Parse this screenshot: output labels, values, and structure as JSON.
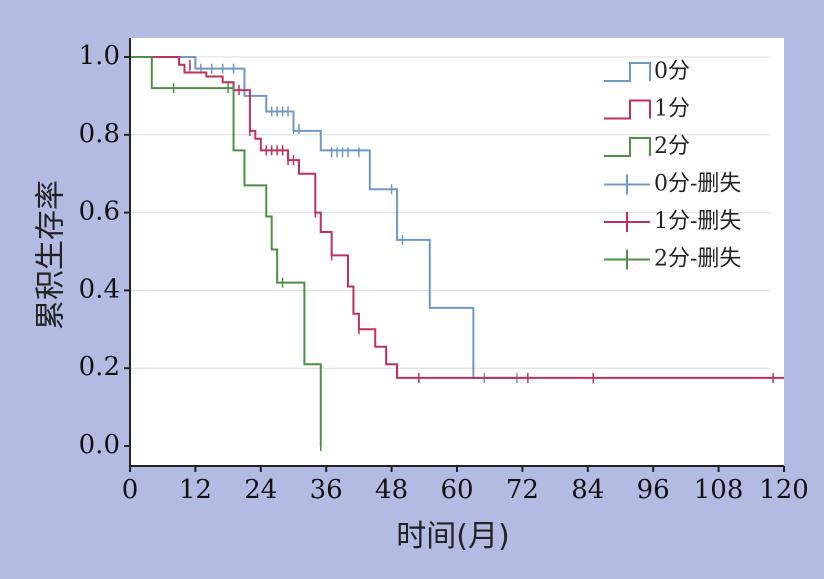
{
  "chart_data": {
    "type": "line",
    "subtype": "kaplan-meier step",
    "xlabel": "时间(月)",
    "ylabel": "累积生存率",
    "xlim": [
      0,
      120
    ],
    "ylim": [
      0,
      1.0
    ],
    "xticks": [
      "0",
      "12",
      "24",
      "36",
      "48",
      "60",
      "72",
      "84",
      "96",
      "108",
      "120"
    ],
    "yticks": [
      "0.0",
      "0.2",
      "0.4",
      "0.6",
      "0.8",
      "1.0"
    ],
    "grid": "horizontal",
    "legend_position": "top-right",
    "legend": [
      "0分",
      "1分",
      "2分",
      "0分-删失",
      "1分-删失",
      "2分-删失"
    ],
    "series": [
      {
        "name": "0分",
        "color": "#6f98c7",
        "steps": [
          [
            0,
            1.0
          ],
          [
            12,
            0.97
          ],
          [
            21,
            0.9
          ],
          [
            25,
            0.86
          ],
          [
            30,
            0.81
          ],
          [
            35,
            0.76
          ],
          [
            44,
            0.66
          ],
          [
            49,
            0.53
          ],
          [
            55,
            0.355
          ],
          [
            63,
            0.175
          ],
          [
            72,
            0.175
          ]
        ],
        "censored": [
          [
            11,
            0.97
          ],
          [
            13,
            0.97
          ],
          [
            15,
            0.97
          ],
          [
            17,
            0.97
          ],
          [
            19,
            0.97
          ],
          [
            26,
            0.86
          ],
          [
            27,
            0.86
          ],
          [
            28,
            0.86
          ],
          [
            29,
            0.86
          ],
          [
            30,
            0.815
          ],
          [
            31,
            0.815
          ],
          [
            37,
            0.755
          ],
          [
            38,
            0.755
          ],
          [
            39,
            0.755
          ],
          [
            40,
            0.755
          ],
          [
            42,
            0.755
          ],
          [
            48,
            0.66
          ],
          [
            50,
            0.53
          ],
          [
            65,
            0.175
          ],
          [
            71,
            0.175
          ]
        ]
      },
      {
        "name": "1分",
        "color": "#c0305a",
        "steps": [
          [
            0,
            1.0
          ],
          [
            9,
            0.98
          ],
          [
            10,
            0.96
          ],
          [
            14,
            0.95
          ],
          [
            17,
            0.935
          ],
          [
            19,
            0.915
          ],
          [
            22,
            0.81
          ],
          [
            23,
            0.79
          ],
          [
            24,
            0.76
          ],
          [
            29,
            0.735
          ],
          [
            31,
            0.7
          ],
          [
            34,
            0.6
          ],
          [
            35,
            0.55
          ],
          [
            37,
            0.49
          ],
          [
            40,
            0.41
          ],
          [
            41,
            0.34
          ],
          [
            42,
            0.3
          ],
          [
            45,
            0.255
          ],
          [
            47,
            0.21
          ],
          [
            49,
            0.175
          ],
          [
            120,
            0.175
          ]
        ],
        "censored": [
          [
            11,
            0.98
          ],
          [
            20,
            0.915
          ],
          [
            22,
            0.81
          ],
          [
            25,
            0.76
          ],
          [
            26,
            0.76
          ],
          [
            27,
            0.76
          ],
          [
            28,
            0.76
          ],
          [
            29,
            0.735
          ],
          [
            30,
            0.735
          ],
          [
            34,
            0.6
          ],
          [
            37,
            0.49
          ],
          [
            42,
            0.3
          ],
          [
            53,
            0.175
          ],
          [
            73,
            0.175
          ],
          [
            85,
            0.175
          ],
          [
            118,
            0.175
          ]
        ]
      },
      {
        "name": "2分",
        "color": "#4e8f46",
        "steps": [
          [
            0,
            1.0
          ],
          [
            4,
            0.92
          ],
          [
            19,
            0.76
          ],
          [
            21,
            0.67
          ],
          [
            25,
            0.59
          ],
          [
            26,
            0.505
          ],
          [
            27,
            0.42
          ],
          [
            32,
            0.21
          ],
          [
            35,
            0.0
          ]
        ],
        "censored": [
          [
            8,
            0.92
          ],
          [
            18,
            0.92
          ],
          [
            28,
            0.42
          ],
          [
            35,
            0.0
          ]
        ]
      }
    ]
  }
}
